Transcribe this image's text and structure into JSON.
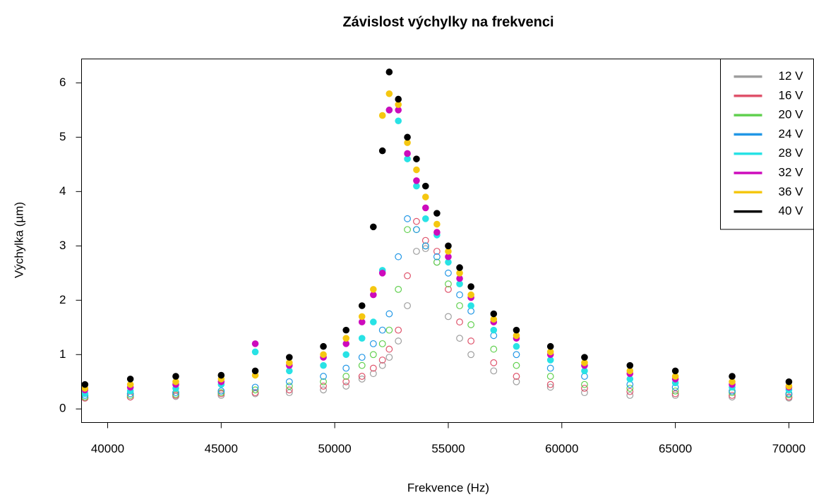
{
  "chart_data": {
    "type": "scatter",
    "title": "Závislost výchylky na frekvenci",
    "x_label": "Frekvence (Hz)",
    "y_label": "Výchylka (µm)",
    "xlim": [
      38850,
      71090
    ],
    "ylim": [
      -0.25,
      6.44
    ],
    "xticks": [
      40000,
      45000,
      50000,
      55000,
      60000,
      65000,
      70000
    ],
    "yticks": [
      0,
      1,
      2,
      3,
      4,
      5,
      6
    ],
    "legend_position": "top-right",
    "x": [
      39000,
      41000,
      43000,
      45000,
      46500,
      48000,
      49500,
      50500,
      51200,
      51700,
      52100,
      52400,
      52800,
      53200,
      53600,
      54000,
      54500,
      55000,
      55500,
      56000,
      57000,
      58000,
      59500,
      61000,
      63000,
      65000,
      67500,
      70000
    ],
    "series": [
      {
        "name": "12 V",
        "color": "#9e9e9e",
        "marker": "open",
        "values": [
          0.2,
          0.22,
          0.23,
          0.25,
          0.28,
          0.3,
          0.35,
          0.42,
          0.55,
          0.65,
          0.8,
          0.95,
          1.25,
          1.9,
          2.9,
          2.95,
          2.7,
          1.7,
          1.3,
          1.0,
          0.7,
          0.5,
          0.4,
          0.3,
          0.25,
          0.25,
          0.22,
          0.2
        ]
      },
      {
        "name": "16 V",
        "color": "#df536b",
        "marker": "open",
        "values": [
          0.2,
          0.22,
          0.25,
          0.28,
          0.3,
          0.35,
          0.42,
          0.5,
          0.6,
          0.75,
          0.9,
          1.1,
          1.45,
          2.45,
          3.45,
          3.1,
          2.9,
          2.2,
          1.6,
          1.25,
          0.85,
          0.6,
          0.45,
          0.38,
          0.32,
          0.28,
          0.25,
          0.22
        ]
      },
      {
        "name": "20 V",
        "color": "#61d04f",
        "marker": "open",
        "values": [
          0.22,
          0.25,
          0.27,
          0.3,
          0.35,
          0.42,
          0.5,
          0.6,
          0.8,
          1.0,
          1.2,
          1.45,
          2.2,
          3.3,
          3.3,
          3.0,
          2.7,
          2.3,
          1.9,
          1.55,
          1.1,
          0.8,
          0.6,
          0.45,
          0.38,
          0.33,
          0.3,
          0.26
        ]
      },
      {
        "name": "24 V",
        "color": "#2297e6",
        "marker": "open",
        "values": [
          0.25,
          0.28,
          0.3,
          0.33,
          0.4,
          0.5,
          0.6,
          0.75,
          0.95,
          1.2,
          1.45,
          1.75,
          2.8,
          3.5,
          3.3,
          3.0,
          2.8,
          2.5,
          2.1,
          1.8,
          1.35,
          1.0,
          0.75,
          0.6,
          0.45,
          0.4,
          0.33,
          0.28
        ]
      },
      {
        "name": "28 V",
        "color": "#28e2e5",
        "marker": "filled",
        "values": [
          0.28,
          0.33,
          0.38,
          0.45,
          1.05,
          0.7,
          0.8,
          1.0,
          1.3,
          1.6,
          2.55,
          5.5,
          5.3,
          4.6,
          4.1,
          3.5,
          3.2,
          2.7,
          2.3,
          1.9,
          1.45,
          1.15,
          0.9,
          0.7,
          0.55,
          0.48,
          0.4,
          0.35
        ]
      },
      {
        "name": "32 V",
        "color": "#cd0bbc",
        "marker": "filled",
        "values": [
          0.35,
          0.4,
          0.45,
          0.5,
          1.2,
          0.8,
          0.95,
          1.2,
          1.6,
          2.1,
          2.5,
          5.5,
          5.5,
          4.7,
          4.2,
          3.7,
          3.25,
          2.8,
          2.4,
          2.05,
          1.6,
          1.3,
          1.0,
          0.8,
          0.65,
          0.55,
          0.45,
          0.4
        ]
      },
      {
        "name": "36 V",
        "color": "#f5c710",
        "marker": "filled",
        "values": [
          0.38,
          0.45,
          0.5,
          0.55,
          0.62,
          0.85,
          1.0,
          1.3,
          1.7,
          2.2,
          5.4,
          5.8,
          5.6,
          4.9,
          4.4,
          3.9,
          3.4,
          2.9,
          2.5,
          2.1,
          1.65,
          1.35,
          1.05,
          0.85,
          0.7,
          0.6,
          0.5,
          0.42
        ]
      },
      {
        "name": "40 V",
        "color": "#000000",
        "marker": "filled",
        "values": [
          0.45,
          0.55,
          0.6,
          0.62,
          0.7,
          0.95,
          1.15,
          1.45,
          1.9,
          3.35,
          4.75,
          6.2,
          5.7,
          5.0,
          4.6,
          4.1,
          3.6,
          3.0,
          2.6,
          2.25,
          1.75,
          1.45,
          1.15,
          0.95,
          0.8,
          0.7,
          0.6,
          0.5
        ]
      }
    ]
  }
}
